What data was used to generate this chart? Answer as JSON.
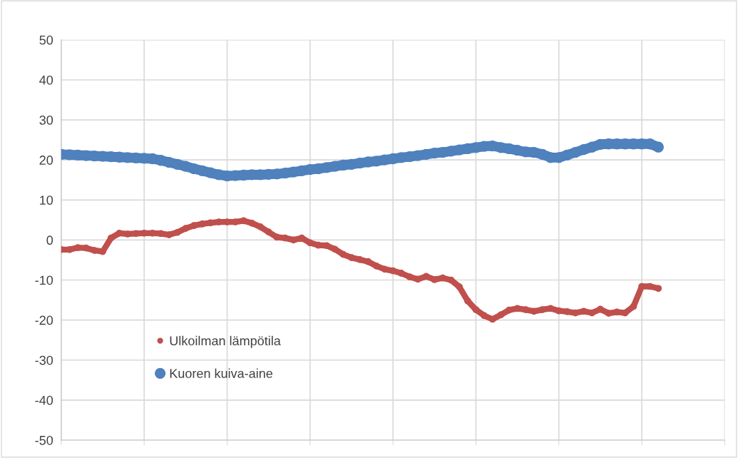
{
  "chart_data": {
    "type": "line",
    "marker": "circle",
    "grid": true,
    "legend": "bottom left",
    "categories": [
      null,
      null,
      null,
      null,
      null,
      null,
      null,
      null,
      null,
      null,
      null,
      null,
      null,
      null,
      null,
      null,
      null,
      null,
      null,
      null,
      null,
      null,
      null,
      null,
      null,
      null,
      null,
      null,
      null,
      null,
      null,
      null,
      null,
      null,
      null,
      null,
      null,
      null,
      null,
      null,
      null,
      null,
      null,
      null,
      null,
      null,
      null,
      null,
      null,
      null,
      null,
      null,
      null,
      null,
      null,
      null,
      null,
      null,
      null,
      null,
      null,
      null,
      null,
      null,
      null,
      null,
      null,
      null,
      null,
      null,
      null,
      null,
      null,
      null,
      null,
      null,
      null,
      null,
      null,
      null,
      null
    ],
    "ylim": [
      -50,
      50
    ],
    "yticks": [
      -50,
      -40,
      -30,
      -20,
      -10,
      0,
      10,
      20,
      30,
      40,
      50
    ],
    "series": [
      {
        "name": "Ulkoilman lämpötila",
        "color": "#c0504d",
        "values": [
          -2.4,
          -2.4,
          -1.9,
          -2.0,
          -2.6,
          -2.9,
          0.5,
          1.7,
          1.5,
          1.6,
          1.7,
          1.7,
          1.6,
          1.3,
          1.9,
          2.9,
          3.6,
          4.0,
          4.3,
          4.5,
          4.5,
          4.5,
          4.8,
          4.2,
          3.3,
          2.0,
          0.7,
          0.5,
          0.0,
          0.5,
          -0.7,
          -1.3,
          -1.4,
          -2.3,
          -3.6,
          -4.4,
          -4.9,
          -5.4,
          -6.5,
          -7.3,
          -7.7,
          -8.3,
          -9.2,
          -9.8,
          -9.1,
          -9.9,
          -9.5,
          -10.0,
          -11.7,
          -15.2,
          -17.4,
          -18.9,
          -19.8,
          -18.7,
          -17.5,
          -17.1,
          -17.4,
          -17.8,
          -17.4,
          -17.1,
          -17.7,
          -17.9,
          -18.2,
          -17.8,
          -18.2,
          -17.3,
          -18.3,
          -18.0,
          -18.2,
          -16.6,
          -11.6,
          -11.6,
          -12.1,
          null,
          null,
          null,
          null,
          null,
          null,
          null,
          null
        ]
      },
      {
        "name": "Kuoren kuiva-aine",
        "color": "#4f81bd",
        "values": [
          21.4,
          21.3,
          21.2,
          21.1,
          21.0,
          20.9,
          20.8,
          20.7,
          20.6,
          20.5,
          20.4,
          20.3,
          19.9,
          19.4,
          18.9,
          18.4,
          17.8,
          17.3,
          16.8,
          16.3,
          16.0,
          16.1,
          16.2,
          16.3,
          16.3,
          16.4,
          16.5,
          16.7,
          17.0,
          17.3,
          17.6,
          17.8,
          18.1,
          18.4,
          18.7,
          18.9,
          19.2,
          19.5,
          19.7,
          20.0,
          20.3,
          20.6,
          20.8,
          21.1,
          21.4,
          21.7,
          21.9,
          22.2,
          22.5,
          22.8,
          23.1,
          23.4,
          23.5,
          23.1,
          22.8,
          22.4,
          22.0,
          21.9,
          21.4,
          20.6,
          20.6,
          21.2,
          21.9,
          22.6,
          23.2,
          23.9,
          24.0,
          24.0,
          24.0,
          24.0,
          24.0,
          24.0,
          23.2,
          null,
          null,
          null,
          null,
          null,
          null,
          null,
          null
        ]
      }
    ]
  }
}
